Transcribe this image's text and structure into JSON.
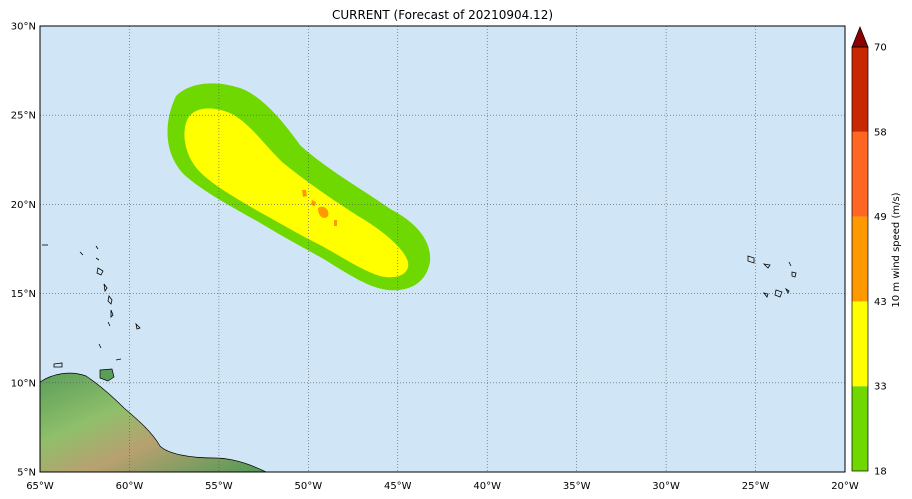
{
  "title": "CURRENT (Forecast of 20210904.12)",
  "map": {
    "ocean_color": "#d0e6f6",
    "lon_ticks": [
      "65°W",
      "60°W",
      "55°W",
      "50°W",
      "45°W",
      "40°W",
      "35°W",
      "30°W",
      "25°W",
      "20°W"
    ],
    "lat_ticks": [
      "30°N",
      "25°N",
      "20°N",
      "15°N",
      "10°N",
      "5°N"
    ],
    "lon_range": [
      -65,
      -20
    ],
    "lat_range": [
      5,
      30
    ],
    "grid": true
  },
  "colorbar": {
    "label": "10 m wind speed (m/s)",
    "levels": [
      "18",
      "33",
      "43",
      "49",
      "58",
      "70"
    ],
    "colors": [
      "#6ed800",
      "#ffff00",
      "#ff9900",
      "#ff6622",
      "#c82800",
      "#8b0000"
    ]
  }
}
